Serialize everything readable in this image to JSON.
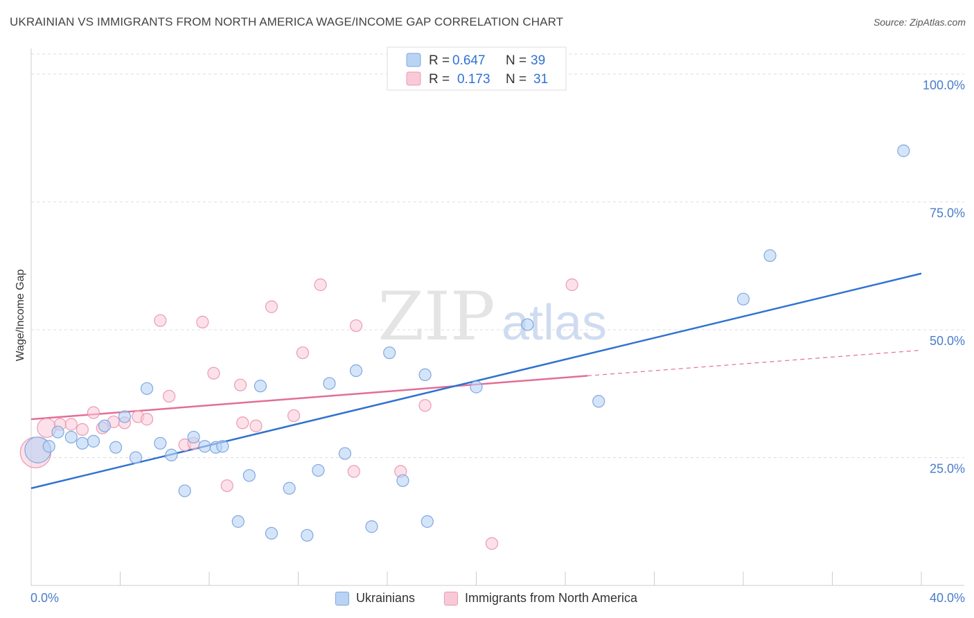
{
  "title": "UKRAINIAN VS IMMIGRANTS FROM NORTH AMERICA WAGE/INCOME GAP CORRELATION CHART",
  "source": "Source: ZipAtlas.com",
  "watermark": {
    "zip": "ZIP",
    "atlas": "atlas"
  },
  "stats_legend": [
    {
      "r_label": "R = ",
      "r_value": "0.647",
      "n_label": "N = ",
      "n_value": "39"
    },
    {
      "r_label": "R = ",
      "r_value": "0.173",
      "n_label": "N = ",
      "n_value": "31"
    }
  ],
  "bottom_legend": {
    "blue": "Ukrainians",
    "pink": "Immigrants from North America"
  },
  "colors": {
    "blue_fill": "#b9d3f5",
    "blue_stroke": "#7fa7e0",
    "blue_line": "#2f72d0",
    "pink_fill": "#f9c9d7",
    "pink_stroke": "#eb9ab4",
    "pink_line": "#e26e97",
    "tick_text": "#4a7cc9",
    "grid": "#dddddd"
  },
  "chart_data": {
    "type": "scatter",
    "title": "UKRAINIAN VS IMMIGRANTS FROM NORTH AMERICA WAGE/INCOME GAP CORRELATION CHART",
    "xlabel": "",
    "ylabel": "Wage/Income Gap",
    "xlim": [
      0,
      40
    ],
    "ylim": [
      0,
      105
    ],
    "x_tick_labels": [
      "0.0%",
      "40.0%"
    ],
    "y_ticks": [
      25,
      50,
      75,
      100
    ],
    "y_tick_labels": [
      "25.0%",
      "50.0%",
      "75.0%",
      "100.0%"
    ],
    "grid": true,
    "legend_position": "top-center",
    "series": [
      {
        "name": "Ukrainians",
        "r": 0.647,
        "n": 39,
        "trend": {
          "x": [
            0,
            40
          ],
          "y": [
            19,
            61
          ]
        },
        "points": [
          [
            0.3,
            26.5,
            2.2
          ],
          [
            0.8,
            27.2,
            1
          ],
          [
            1.2,
            30,
            1
          ],
          [
            1.8,
            29,
            1
          ],
          [
            2.3,
            27.8,
            1
          ],
          [
            2.8,
            28.2,
            1
          ],
          [
            3.3,
            31.2,
            1
          ],
          [
            3.8,
            27,
            1
          ],
          [
            4.2,
            33,
            1
          ],
          [
            4.7,
            25,
            1
          ],
          [
            5.2,
            38.5,
            1
          ],
          [
            5.8,
            27.8,
            1
          ],
          [
            6.3,
            25.5,
            1
          ],
          [
            6.9,
            18.5,
            1
          ],
          [
            7.3,
            29,
            1
          ],
          [
            7.8,
            27.2,
            1
          ],
          [
            8.3,
            27,
            1
          ],
          [
            8.6,
            27.2,
            1
          ],
          [
            9.3,
            12.5,
            1
          ],
          [
            9.8,
            21.5,
            1
          ],
          [
            10.3,
            39,
            1
          ],
          [
            10.8,
            10.2,
            1
          ],
          [
            11.6,
            19,
            1
          ],
          [
            12.4,
            9.8,
            1
          ],
          [
            12.9,
            22.5,
            1
          ],
          [
            13.4,
            39.5,
            1
          ],
          [
            14.1,
            25.8,
            1
          ],
          [
            14.6,
            42,
            1
          ],
          [
            15.3,
            11.5,
            1
          ],
          [
            16.1,
            45.5,
            1
          ],
          [
            16.7,
            20.5,
            1
          ],
          [
            17.7,
            41.2,
            1
          ],
          [
            17.8,
            12.5,
            1
          ],
          [
            20,
            38.8,
            1
          ],
          [
            22.3,
            51,
            1
          ],
          [
            25.5,
            36,
            1
          ],
          [
            32,
            56,
            1
          ],
          [
            33.2,
            64.5,
            1
          ],
          [
            39.2,
            85,
            1
          ]
        ]
      },
      {
        "name": "Immigrants from North America",
        "r": 0.173,
        "n": 31,
        "trend": {
          "x": [
            0,
            25
          ],
          "y": [
            32.5,
            41
          ],
          "dashed_to": {
            "x": 40,
            "y": 46
          }
        },
        "points": [
          [
            0.2,
            26,
            2.6
          ],
          [
            0.7,
            30.8,
            1.6
          ],
          [
            1.3,
            31.5,
            1
          ],
          [
            1.8,
            31.5,
            1
          ],
          [
            2.3,
            30.5,
            1
          ],
          [
            2.8,
            33.8,
            1
          ],
          [
            3.2,
            30.8,
            1
          ],
          [
            3.7,
            32,
            1
          ],
          [
            4.2,
            31.8,
            1
          ],
          [
            4.8,
            33,
            1
          ],
          [
            5.2,
            32.5,
            1
          ],
          [
            5.8,
            51.8,
            1
          ],
          [
            6.2,
            37,
            1
          ],
          [
            6.9,
            27.5,
            1
          ],
          [
            7.3,
            27.8,
            1
          ],
          [
            7.7,
            51.5,
            1
          ],
          [
            8.2,
            41.5,
            1
          ],
          [
            8.8,
            19.5,
            1
          ],
          [
            9.4,
            39.2,
            1
          ],
          [
            9.5,
            31.8,
            1
          ],
          [
            10.1,
            31.2,
            1
          ],
          [
            10.8,
            54.5,
            1
          ],
          [
            11.8,
            33.2,
            1
          ],
          [
            12.2,
            45.5,
            1
          ],
          [
            13,
            58.8,
            1
          ],
          [
            14.5,
            22.3,
            1
          ],
          [
            14.6,
            50.8,
            1
          ],
          [
            16.6,
            22.3,
            1
          ],
          [
            17.7,
            35.2,
            1
          ],
          [
            20.7,
            8.2,
            1
          ],
          [
            24.3,
            58.8,
            1
          ]
        ]
      }
    ]
  }
}
